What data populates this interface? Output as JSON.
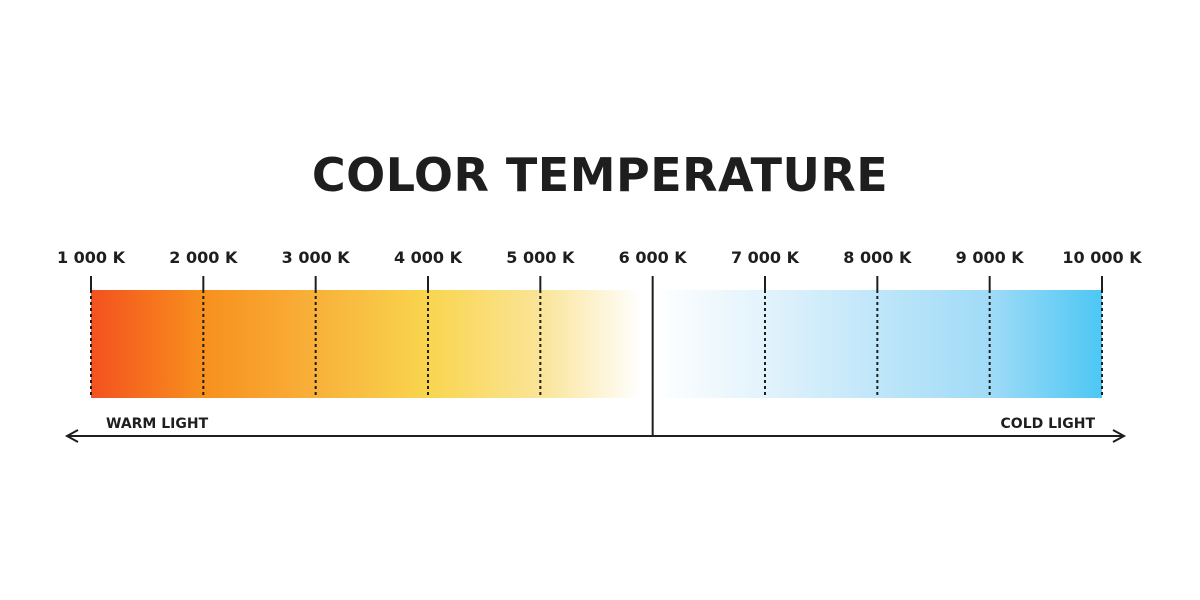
{
  "title": "COLOR TEMPERATURE",
  "scale": {
    "labels": [
      "1 000 K",
      "2 000 K",
      "3 000 K",
      "4 000 K",
      "5 000 K",
      "6 000 K",
      "7 000 K",
      "8 000 K",
      "9 000 K",
      "10 000 K"
    ],
    "divider_label_index": 5,
    "gradient_stops": [
      {
        "kelvin": 1000,
        "color": "#f4511e"
      },
      {
        "kelvin": 2000,
        "color": "#f7901e"
      },
      {
        "kelvin": 3000,
        "color": "#f8b13a"
      },
      {
        "kelvin": 4000,
        "color": "#f9d54e"
      },
      {
        "kelvin": 5000,
        "color": "#fae497"
      },
      {
        "kelvin": 5900,
        "color": "#ffffff"
      },
      {
        "kelvin": 6000,
        "color": "#ffffff"
      },
      {
        "kelvin": 7000,
        "color": "#e2f3fc"
      },
      {
        "kelvin": 8000,
        "color": "#bfe6f9"
      },
      {
        "kelvin": 9000,
        "color": "#a0dbf7"
      },
      {
        "kelvin": 10000,
        "color": "#4cc7f4"
      }
    ]
  },
  "arrows": {
    "warm_label": "WARM LIGHT",
    "cold_label": "COLD LIGHT"
  }
}
